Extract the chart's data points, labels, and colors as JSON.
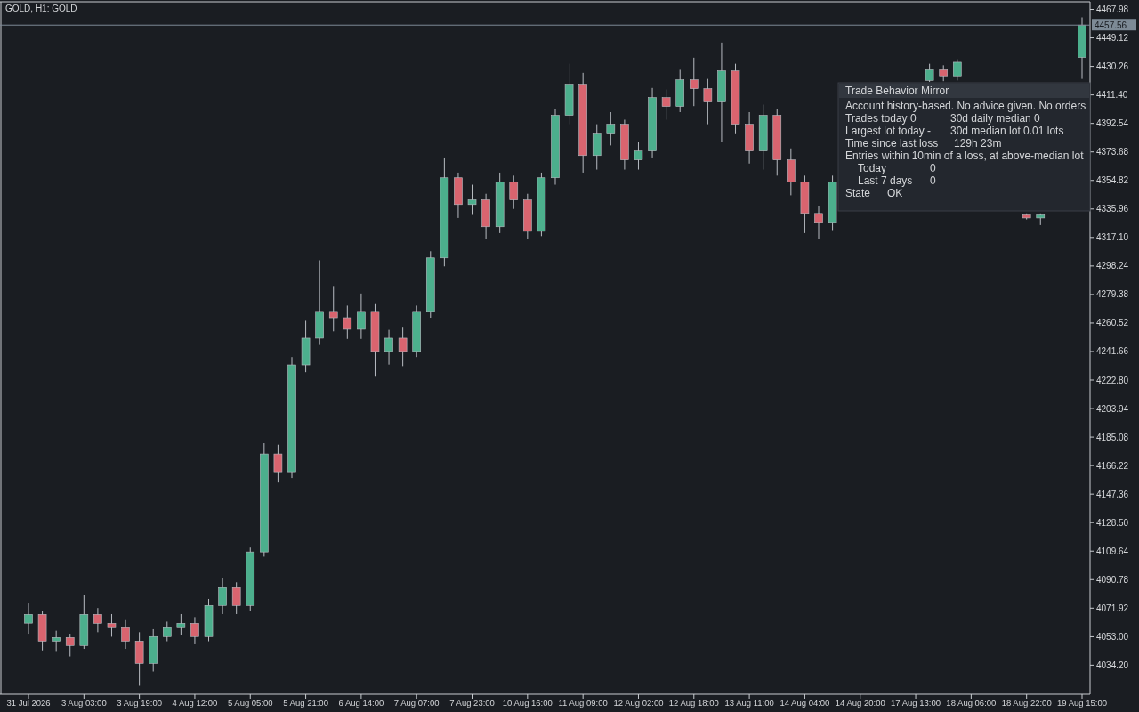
{
  "chart_data": {
    "type": "candlestick",
    "title": "GOLD, H1:  GOLD",
    "categories": [
      "31 Jul 2026",
      null,
      null,
      null,
      "3 Aug 03:00",
      null,
      null,
      null,
      "3 Aug 19:00",
      null,
      null,
      null,
      "4 Aug 12:00",
      null,
      null,
      null,
      "5 Aug 05:00",
      null,
      null,
      null,
      "5 Aug 21:00",
      null,
      null,
      null,
      "6 Aug 14:00",
      null,
      null,
      null,
      "7 Aug 07:00",
      null,
      null,
      null,
      "7 Aug 23:00",
      null,
      null,
      null,
      "10 Aug 16:00",
      null,
      null,
      null,
      "11 Aug 09:00",
      null,
      null,
      null,
      "12 Aug 02:00",
      null,
      null,
      null,
      "12 Aug 18:00",
      null,
      null,
      null,
      "13 Aug 11:00",
      null,
      null,
      null,
      "14 Aug 04:00",
      null,
      null,
      null,
      "14 Aug 20:00",
      null,
      null,
      null,
      "17 Aug 13:00",
      null,
      null,
      null,
      "18 Aug 06:00",
      null,
      null,
      null,
      "18 Aug 22:00",
      null,
      null,
      null,
      "19 Aug 15:00"
    ],
    "ohlc": [
      [
        4062,
        4075,
        4055,
        4067.8
      ],
      [
        4067.8,
        4070,
        4044,
        4050.1
      ],
      [
        4050.1,
        4057,
        4043,
        4052.5
      ],
      [
        4052.5,
        4055,
        4040,
        4047.2
      ],
      [
        4047.2,
        4080.8,
        4045,
        4067.8
      ],
      [
        4067.8,
        4072,
        4056,
        4061.9
      ],
      [
        4061.9,
        4068,
        4053,
        4059.0
      ],
      [
        4059.0,
        4064,
        4045,
        4050.1
      ],
      [
        4050.1,
        4056,
        4020.6,
        4035.4
      ],
      [
        4035.4,
        4058,
        4030,
        4053.1
      ],
      [
        4053.1,
        4063,
        4050,
        4059.0
      ],
      [
        4059.0,
        4068,
        4054,
        4061.9
      ],
      [
        4061.9,
        4066,
        4048,
        4053.1
      ],
      [
        4053.1,
        4078,
        4050,
        4073.7
      ],
      [
        4073.7,
        4092,
        4068,
        4085.5
      ],
      [
        4085.5,
        4089,
        4068,
        4073.7
      ],
      [
        4073.7,
        4112,
        4070,
        4109.1
      ],
      [
        4109.1,
        4181,
        4106,
        4173.9
      ],
      [
        4173.9,
        4180,
        4155,
        4162.1
      ],
      [
        4162.1,
        4238,
        4158,
        4232.8
      ],
      [
        4232.8,
        4262,
        4228,
        4250.5
      ],
      [
        4250.5,
        4302,
        4246,
        4268.2
      ],
      [
        4268.2,
        4285,
        4255,
        4264
      ],
      [
        4264,
        4272,
        4250,
        4256.4
      ],
      [
        4256.4,
        4280,
        4250,
        4268.2
      ],
      [
        4268.2,
        4273,
        4225,
        4241.7
      ],
      [
        4241.7,
        4256,
        4233,
        4250.5
      ],
      [
        4250.5,
        4258,
        4232,
        4241.7
      ],
      [
        4241.7,
        4272,
        4238,
        4268.2
      ],
      [
        4268.2,
        4308,
        4264,
        4303.6
      ],
      [
        4303.6,
        4370,
        4298,
        4356.6
      ],
      [
        4356.6,
        4360,
        4330,
        4338.9
      ],
      [
        4338.9,
        4352,
        4332,
        4342
      ],
      [
        4342,
        4346,
        4316,
        4324.2
      ],
      [
        4324.2,
        4360,
        4320,
        4353.7
      ],
      [
        4353.7,
        4358,
        4336,
        4341.9
      ],
      [
        4341.9,
        4346,
        4316,
        4321.2
      ],
      [
        4321.2,
        4360,
        4318,
        4356.6
      ],
      [
        4356.6,
        4402,
        4352,
        4397.9
      ],
      [
        4397.9,
        4432,
        4392,
        4418.5
      ],
      [
        4418.5,
        4426,
        4360,
        4371.3
      ],
      [
        4371.3,
        4392,
        4362,
        4386.1
      ],
      [
        4386.1,
        4400,
        4378,
        4392
      ],
      [
        4392,
        4395,
        4362,
        4368.4
      ],
      [
        4368.4,
        4380,
        4362,
        4374.3
      ],
      [
        4374.3,
        4416,
        4370,
        4409.6
      ],
      [
        4409.6,
        4415,
        4395,
        4403.8
      ],
      [
        4403.8,
        4428,
        4400,
        4421.4
      ],
      [
        4421.4,
        4436,
        4404,
        4415.5
      ],
      [
        4415.5,
        4422,
        4392,
        4406.7
      ],
      [
        4406.7,
        4446,
        4380,
        4427.3
      ],
      [
        4427.3,
        4432,
        4386,
        4392
      ],
      [
        4392,
        4400,
        4366,
        4374.3
      ],
      [
        4374.3,
        4405,
        4362,
        4397.9
      ],
      [
        4397.9,
        4402,
        4358,
        4368.4
      ],
      [
        4368.4,
        4376,
        4345,
        4353.7
      ],
      [
        4353.7,
        4358,
        4320,
        4333
      ],
      [
        4333,
        4338,
        4316,
        4327.1
      ],
      [
        4327.1,
        4358,
        4322,
        4353.7
      ],
      null,
      null,
      null,
      null,
      null,
      null,
      [
        4421,
        4432,
        4420,
        4428
      ],
      [
        4428,
        4431,
        4420.5,
        4424
      ],
      [
        4424,
        4435,
        4421,
        4433
      ],
      null,
      null,
      null,
      null,
      [
        4332,
        4333,
        4329,
        4330
      ],
      [
        4330,
        4333,
        4325.3,
        4332
      ],
      null,
      null,
      [
        4436.2,
        4462.7,
        4422,
        4457.56
      ]
    ],
    "ylim": [
      4015,
      4473
    ],
    "yticks": [
      {
        "value": 4034.2,
        "label": "4034.20"
      },
      {
        "value": 4053,
        "label": "4053.00"
      },
      4071.92,
      4090.78,
      4109.64,
      {
        "value": 4128.5,
        "label": "4128.50"
      },
      4147.36,
      4166.22,
      4185.08,
      4203.94,
      {
        "value": 4222.8,
        "label": "4222.80"
      },
      4241.66,
      4260.52,
      4279.38,
      4298.24,
      {
        "value": 4317.1,
        "label": "4317.10"
      },
      4335.96,
      4354.82,
      4373.68,
      4392.54,
      {
        "value": 4411.4,
        "label": "4411.40"
      },
      4430.26,
      4449.12,
      4467.98
    ],
    "ref_lines": [
      {
        "axis": "y",
        "value": 4457.56,
        "label": "4457.56",
        "color": "#7d8a96"
      }
    ],
    "annotations": [
      "Trade Behavior Mirror",
      "Account history-based. No advice given. No orders",
      "Trades today  0",
      "30d daily median  0",
      "Largest lot today  -",
      "30d median lot  0.01 lots",
      "Time since last loss",
      "129h 23m",
      "Entries within 10min of a loss, at above-median lot",
      "Today",
      "0",
      "Last 7 days",
      "0",
      "State",
      "OK"
    ]
  }
}
